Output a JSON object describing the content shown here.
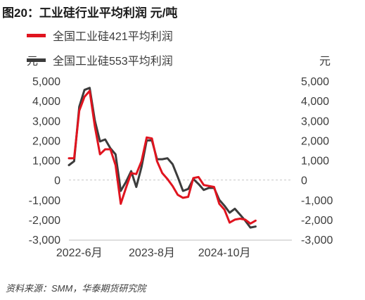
{
  "title": "图20：工业硅行业平均利润 元/吨",
  "source": "资料来源：SMM，华泰期货研究院",
  "chart_data": {
    "type": "line",
    "title": "图20：工业硅行业平均利润 元/吨",
    "y_unit_left": "元",
    "y_unit_right": "元",
    "ylim": [
      -3000,
      5000
    ],
    "y_ticks": [
      5000,
      4000,
      3000,
      2000,
      1000,
      0,
      -1000,
      -2000,
      -3000
    ],
    "y_tick_labels": [
      "5,000",
      "4,000",
      "3,000",
      "2,000",
      "1,000",
      "0",
      "-1,000",
      "-2,000",
      "-3,000"
    ],
    "x_tick_labels": [
      "2022-6月",
      "2023-8月",
      "2024-10月"
    ],
    "x_tick_index": [
      2,
      16,
      30
    ],
    "x_count": 44,
    "grid": false,
    "legend_position": "top-left",
    "series": [
      {
        "name": "全国工业硅421平均利润",
        "color": "#e0141f",
        "values": [
          1100,
          1100,
          3500,
          4200,
          4500,
          2700,
          1300,
          1550,
          1550,
          750,
          -1200,
          -400,
          350,
          300,
          950,
          2150,
          2100,
          950,
          350,
          50,
          -300,
          -750,
          -900,
          -850,
          100,
          150,
          -250,
          -300,
          -350,
          -1200,
          -1500,
          -2150,
          -2000,
          -1950,
          -2000,
          -2200,
          -2050
        ]
      },
      {
        "name": "全国工业硅553平均利润",
        "color": "#3c3c3c",
        "values": [
          750,
          950,
          3700,
          4550,
          4650,
          3000,
          1950,
          2050,
          1600,
          1300,
          -550,
          -100,
          450,
          -350,
          650,
          2000,
          2000,
          1050,
          1050,
          1100,
          800,
          150,
          -550,
          -450,
          50,
          -200,
          -500,
          -400,
          -400,
          -1000,
          -1300,
          -1650,
          -1450,
          -1750,
          -2050,
          -2400,
          -2350
        ]
      }
    ]
  }
}
